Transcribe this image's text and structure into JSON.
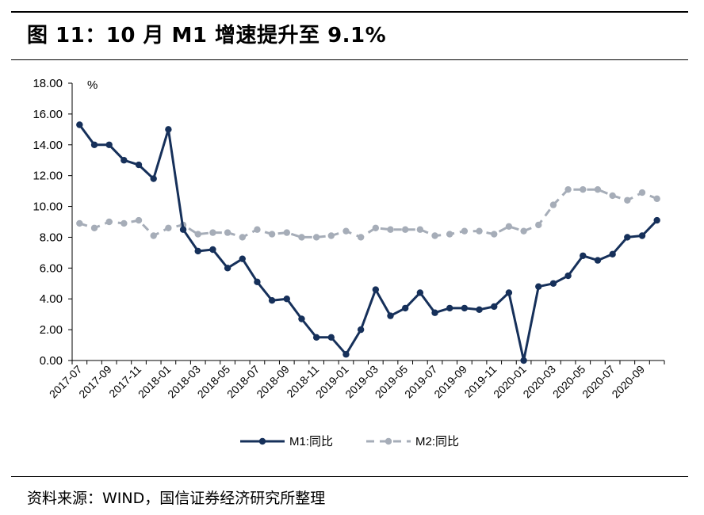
{
  "title": "图 11：10 月 M1 增速提升至 9.1%",
  "source": "资料来源：WIND，国信证券经济研究所整理",
  "colors": {
    "m1": "#16305a",
    "m2": "#a6adb8",
    "axis": "#000000"
  },
  "chart_data": {
    "type": "line",
    "ylabel": "%",
    "ylim": [
      0,
      18
    ],
    "yticks": [
      "0.00",
      "2.00",
      "4.00",
      "6.00",
      "8.00",
      "10.00",
      "12.00",
      "14.00",
      "16.00",
      "18.00"
    ],
    "x": [
      "2017-07",
      "2017-08",
      "2017-09",
      "2017-10",
      "2017-11",
      "2017-12",
      "2018-01",
      "2018-02",
      "2018-03",
      "2018-04",
      "2018-05",
      "2018-06",
      "2018-07",
      "2018-08",
      "2018-09",
      "2018-10",
      "2018-11",
      "2018-12",
      "2019-01",
      "2019-02",
      "2019-03",
      "2019-04",
      "2019-05",
      "2019-06",
      "2019-07",
      "2019-08",
      "2019-09",
      "2019-10",
      "2019-11",
      "2019-12",
      "2020-01",
      "2020-02",
      "2020-03",
      "2020-04",
      "2020-05",
      "2020-06",
      "2020-07",
      "2020-08",
      "2020-09",
      "2020-10"
    ],
    "xtick_labels": [
      "2017-07",
      "2017-09",
      "2017-11",
      "2018-01",
      "2018-03",
      "2018-05",
      "2018-07",
      "2018-09",
      "2018-11",
      "2019-01",
      "2019-03",
      "2019-05",
      "2019-07",
      "2019-09",
      "2019-11",
      "2020-01",
      "2020-03",
      "2020-05",
      "2020-07",
      "2020-09"
    ],
    "grid": false,
    "legend_position": "bottom",
    "series": [
      {
        "name": "M1:同比",
        "style": "solid",
        "values": [
          15.3,
          14.0,
          14.0,
          13.0,
          12.7,
          11.8,
          15.0,
          8.5,
          7.1,
          7.2,
          6.0,
          6.6,
          5.1,
          3.9,
          4.0,
          2.7,
          1.5,
          1.5,
          0.4,
          2.0,
          4.6,
          2.9,
          3.4,
          4.4,
          3.1,
          3.4,
          3.4,
          3.3,
          3.5,
          4.4,
          0.0,
          4.8,
          5.0,
          5.5,
          6.8,
          6.5,
          6.9,
          8.0,
          8.1,
          9.1
        ]
      },
      {
        "name": "M2:同比",
        "style": "dashed",
        "values": [
          8.9,
          8.6,
          9.0,
          8.9,
          9.1,
          8.1,
          8.6,
          8.8,
          8.2,
          8.3,
          8.3,
          8.0,
          8.5,
          8.2,
          8.3,
          8.0,
          8.0,
          8.1,
          8.4,
          8.0,
          8.6,
          8.5,
          8.5,
          8.5,
          8.1,
          8.2,
          8.4,
          8.4,
          8.2,
          8.7,
          8.4,
          8.8,
          10.1,
          11.1,
          11.1,
          11.1,
          10.7,
          10.4,
          10.9,
          10.5
        ]
      }
    ]
  }
}
